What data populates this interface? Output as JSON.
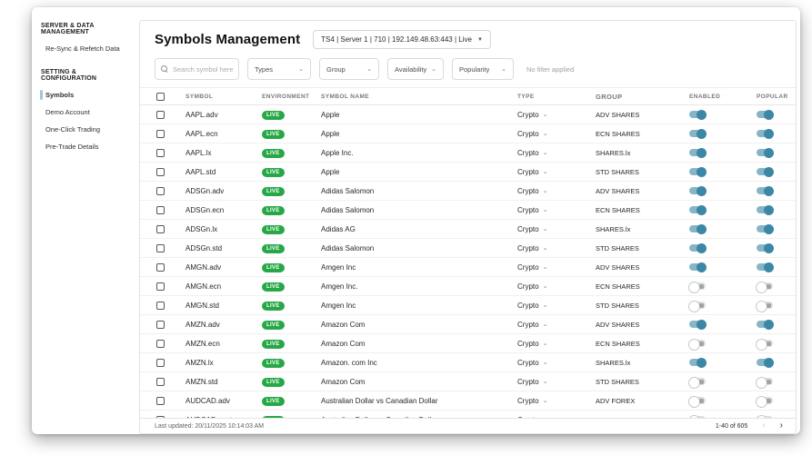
{
  "sidebar": {
    "sections": [
      {
        "title": "SERVER & DATA MANAGEMENT",
        "items": [
          {
            "label": "Re-Sync & Refetch Data",
            "active": false
          }
        ]
      },
      {
        "title": "SETTING & CONFIGURATION",
        "items": [
          {
            "label": "Symbols",
            "active": true
          },
          {
            "label": "Demo Account",
            "active": false
          },
          {
            "label": "One-Click Trading",
            "active": false
          },
          {
            "label": "Pre-Trade Details",
            "active": false
          }
        ]
      }
    ]
  },
  "header": {
    "title": "Symbols Management",
    "server_selector": "TS4 | Server 1 | 710 | 192.149.48.63:443 | Live"
  },
  "filters": {
    "search_placeholder": "Search symbol here",
    "dropdowns": [
      "Types",
      "Group",
      "Availability",
      "Popularity"
    ],
    "status_text": "No filter applied"
  },
  "table": {
    "columns": [
      "SYMBOL",
      "ENVIRONMENT",
      "SYMBOL NAME",
      "TYPE",
      "GROUP",
      "ENABLED",
      "POPULAR"
    ],
    "rows": [
      {
        "symbol": "AAPL.adv",
        "env": "LIVE",
        "name": "Apple",
        "type": "Crypto",
        "group": "ADV SHARES",
        "enabled": true,
        "popular": true
      },
      {
        "symbol": "AAPL.ecn",
        "env": "LIVE",
        "name": "Apple",
        "type": "Crypto",
        "group": "ECN SHARES",
        "enabled": true,
        "popular": true
      },
      {
        "symbol": "AAPL.lx",
        "env": "LIVE",
        "name": "Apple Inc.",
        "type": "Crypto",
        "group": "SHARES.lx",
        "enabled": true,
        "popular": true
      },
      {
        "symbol": "AAPL.std",
        "env": "LIVE",
        "name": "Apple",
        "type": "Crypto",
        "group": "STD SHARES",
        "enabled": true,
        "popular": true
      },
      {
        "symbol": "ADSGn.adv",
        "env": "LIVE",
        "name": "Adidas Salomon",
        "type": "Crypto",
        "group": "ADV SHARES",
        "enabled": true,
        "popular": true
      },
      {
        "symbol": "ADSGn.ecn",
        "env": "LIVE",
        "name": "Adidas Salomon",
        "type": "Crypto",
        "group": "ECN SHARES",
        "enabled": true,
        "popular": true
      },
      {
        "symbol": "ADSGn.lx",
        "env": "LIVE",
        "name": "Adidas AG",
        "type": "Crypto",
        "group": "SHARES.lx",
        "enabled": true,
        "popular": true
      },
      {
        "symbol": "ADSGn.std",
        "env": "LIVE",
        "name": "Adidas Salomon",
        "type": "Crypto",
        "group": "STD SHARES",
        "enabled": true,
        "popular": true
      },
      {
        "symbol": "AMGN.adv",
        "env": "LIVE",
        "name": "Amgen Inc",
        "type": "Crypto",
        "group": "ADV SHARES",
        "enabled": true,
        "popular": true
      },
      {
        "symbol": "AMGN.ecn",
        "env": "LIVE",
        "name": "Amgen Inc.",
        "type": "Crypto",
        "group": "ECN SHARES",
        "enabled": false,
        "popular": false
      },
      {
        "symbol": "AMGN.std",
        "env": "LIVE",
        "name": "Amgen Inc",
        "type": "Crypto",
        "group": "STD SHARES",
        "enabled": false,
        "popular": false
      },
      {
        "symbol": "AMZN.adv",
        "env": "LIVE",
        "name": "Amazon Com",
        "type": "Crypto",
        "group": "ADV SHARES",
        "enabled": true,
        "popular": true
      },
      {
        "symbol": "AMZN.ecn",
        "env": "LIVE",
        "name": "Amazon Com",
        "type": "Crypto",
        "group": "ECN SHARES",
        "enabled": false,
        "popular": false
      },
      {
        "symbol": "AMZN.lx",
        "env": "LIVE",
        "name": "Amazon. com Inc",
        "type": "Crypto",
        "group": "SHARES.lx",
        "enabled": true,
        "popular": true
      },
      {
        "symbol": "AMZN.std",
        "env": "LIVE",
        "name": "Amazon Com",
        "type": "Crypto",
        "group": "STD SHARES",
        "enabled": false,
        "popular": false
      },
      {
        "symbol": "AUDCAD.adv",
        "env": "LIVE",
        "name": "Australian Dollar vs Canadian Dollar",
        "type": "Crypto",
        "group": "ADV FOREX",
        "enabled": false,
        "popular": false
      },
      {
        "symbol": "AUDCAD.cent",
        "env": "LIVE",
        "name": "Australian Dollar vs Canadian Dollar",
        "type": "Crypto",
        "group": "Cent",
        "enabled": false,
        "popular": false
      }
    ]
  },
  "footer": {
    "last_updated": "Last updated: 20/11/2025 10:14:03 AM",
    "page_range": "1-40 of 605"
  },
  "colors": {
    "live_badge": "#27a847",
    "toggle_on": "#3c87a5",
    "active_nav_indicator": "#a3c6dc"
  }
}
